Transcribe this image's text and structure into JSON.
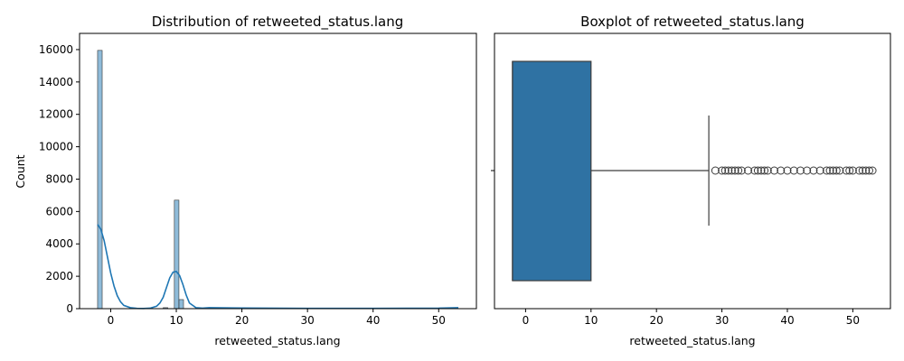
{
  "chart_data": [
    {
      "type": "histogram",
      "title": "Distribution of retweeted_status.lang",
      "xlabel": "retweeted_status.lang",
      "ylabel": "Count",
      "xlim": [
        -4.75,
        55.75
      ],
      "ylim": [
        0,
        17000
      ],
      "xticks": [
        0,
        10,
        20,
        30,
        40,
        50
      ],
      "yticks": [
        0,
        2000,
        4000,
        6000,
        8000,
        10000,
        12000,
        14000,
        16000
      ],
      "bar_color": "#1f77b4",
      "bins": [
        {
          "x0": -2,
          "x1": -1.3,
          "count": 15950
        },
        {
          "x0": 8,
          "x1": 8.7,
          "count": 60
        },
        {
          "x0": 9.7,
          "x1": 10.4,
          "count": 6700
        },
        {
          "x0": 10.4,
          "x1": 11.1,
          "count": 560
        },
        {
          "x0": 14.3,
          "x1": 15.0,
          "count": 60
        },
        {
          "x0": 20.0,
          "x1": 20.7,
          "count": 25
        },
        {
          "x0": 25.0,
          "x1": 25.7,
          "count": 20
        },
        {
          "x0": 30.0,
          "x1": 30.7,
          "count": 20
        },
        {
          "x0": 36.0,
          "x1": 36.7,
          "count": 15
        },
        {
          "x0": 40.0,
          "x1": 40.7,
          "count": 15
        },
        {
          "x0": 46.0,
          "x1": 46.7,
          "count": 15
        },
        {
          "x0": 52.0,
          "x1": 52.7,
          "count": 20
        }
      ],
      "kde": {
        "x": [
          -2,
          -1.5,
          -1,
          -0.5,
          0,
          0.5,
          1,
          1.5,
          2,
          3,
          4,
          5,
          6,
          7,
          7.5,
          8,
          8.5,
          9,
          9.5,
          10,
          10.5,
          11,
          11.5,
          12,
          13,
          14,
          15,
          20,
          30,
          40,
          50,
          53
        ],
        "y": [
          5200,
          4900,
          4200,
          3200,
          2200,
          1400,
          800,
          420,
          200,
          60,
          20,
          10,
          30,
          150,
          350,
          700,
          1300,
          1900,
          2250,
          2300,
          2050,
          1500,
          850,
          350,
          60,
          30,
          60,
          40,
          20,
          20,
          30,
          60
        ]
      }
    },
    {
      "type": "boxplot",
      "title": "Boxplot of retweeted_status.lang",
      "xlabel": "retweeted_status.lang",
      "ylabel": "",
      "xlim": [
        -4.75,
        55.75
      ],
      "xticks": [
        0,
        10,
        20,
        30,
        40,
        50
      ],
      "box_color": "#2f72a3",
      "q1": -2,
      "median": -2,
      "q3": 10,
      "whisker_low": -2,
      "whisker_high": 28,
      "outliers": [
        29,
        30,
        30.5,
        31,
        31.5,
        32,
        32.5,
        33,
        34,
        35,
        35.5,
        36,
        36.5,
        37,
        38,
        39,
        40,
        41,
        42,
        43,
        44,
        45,
        46,
        46.5,
        47,
        47.5,
        48,
        49,
        49.5,
        50,
        51,
        51.5,
        52,
        52.5,
        53
      ]
    }
  ]
}
